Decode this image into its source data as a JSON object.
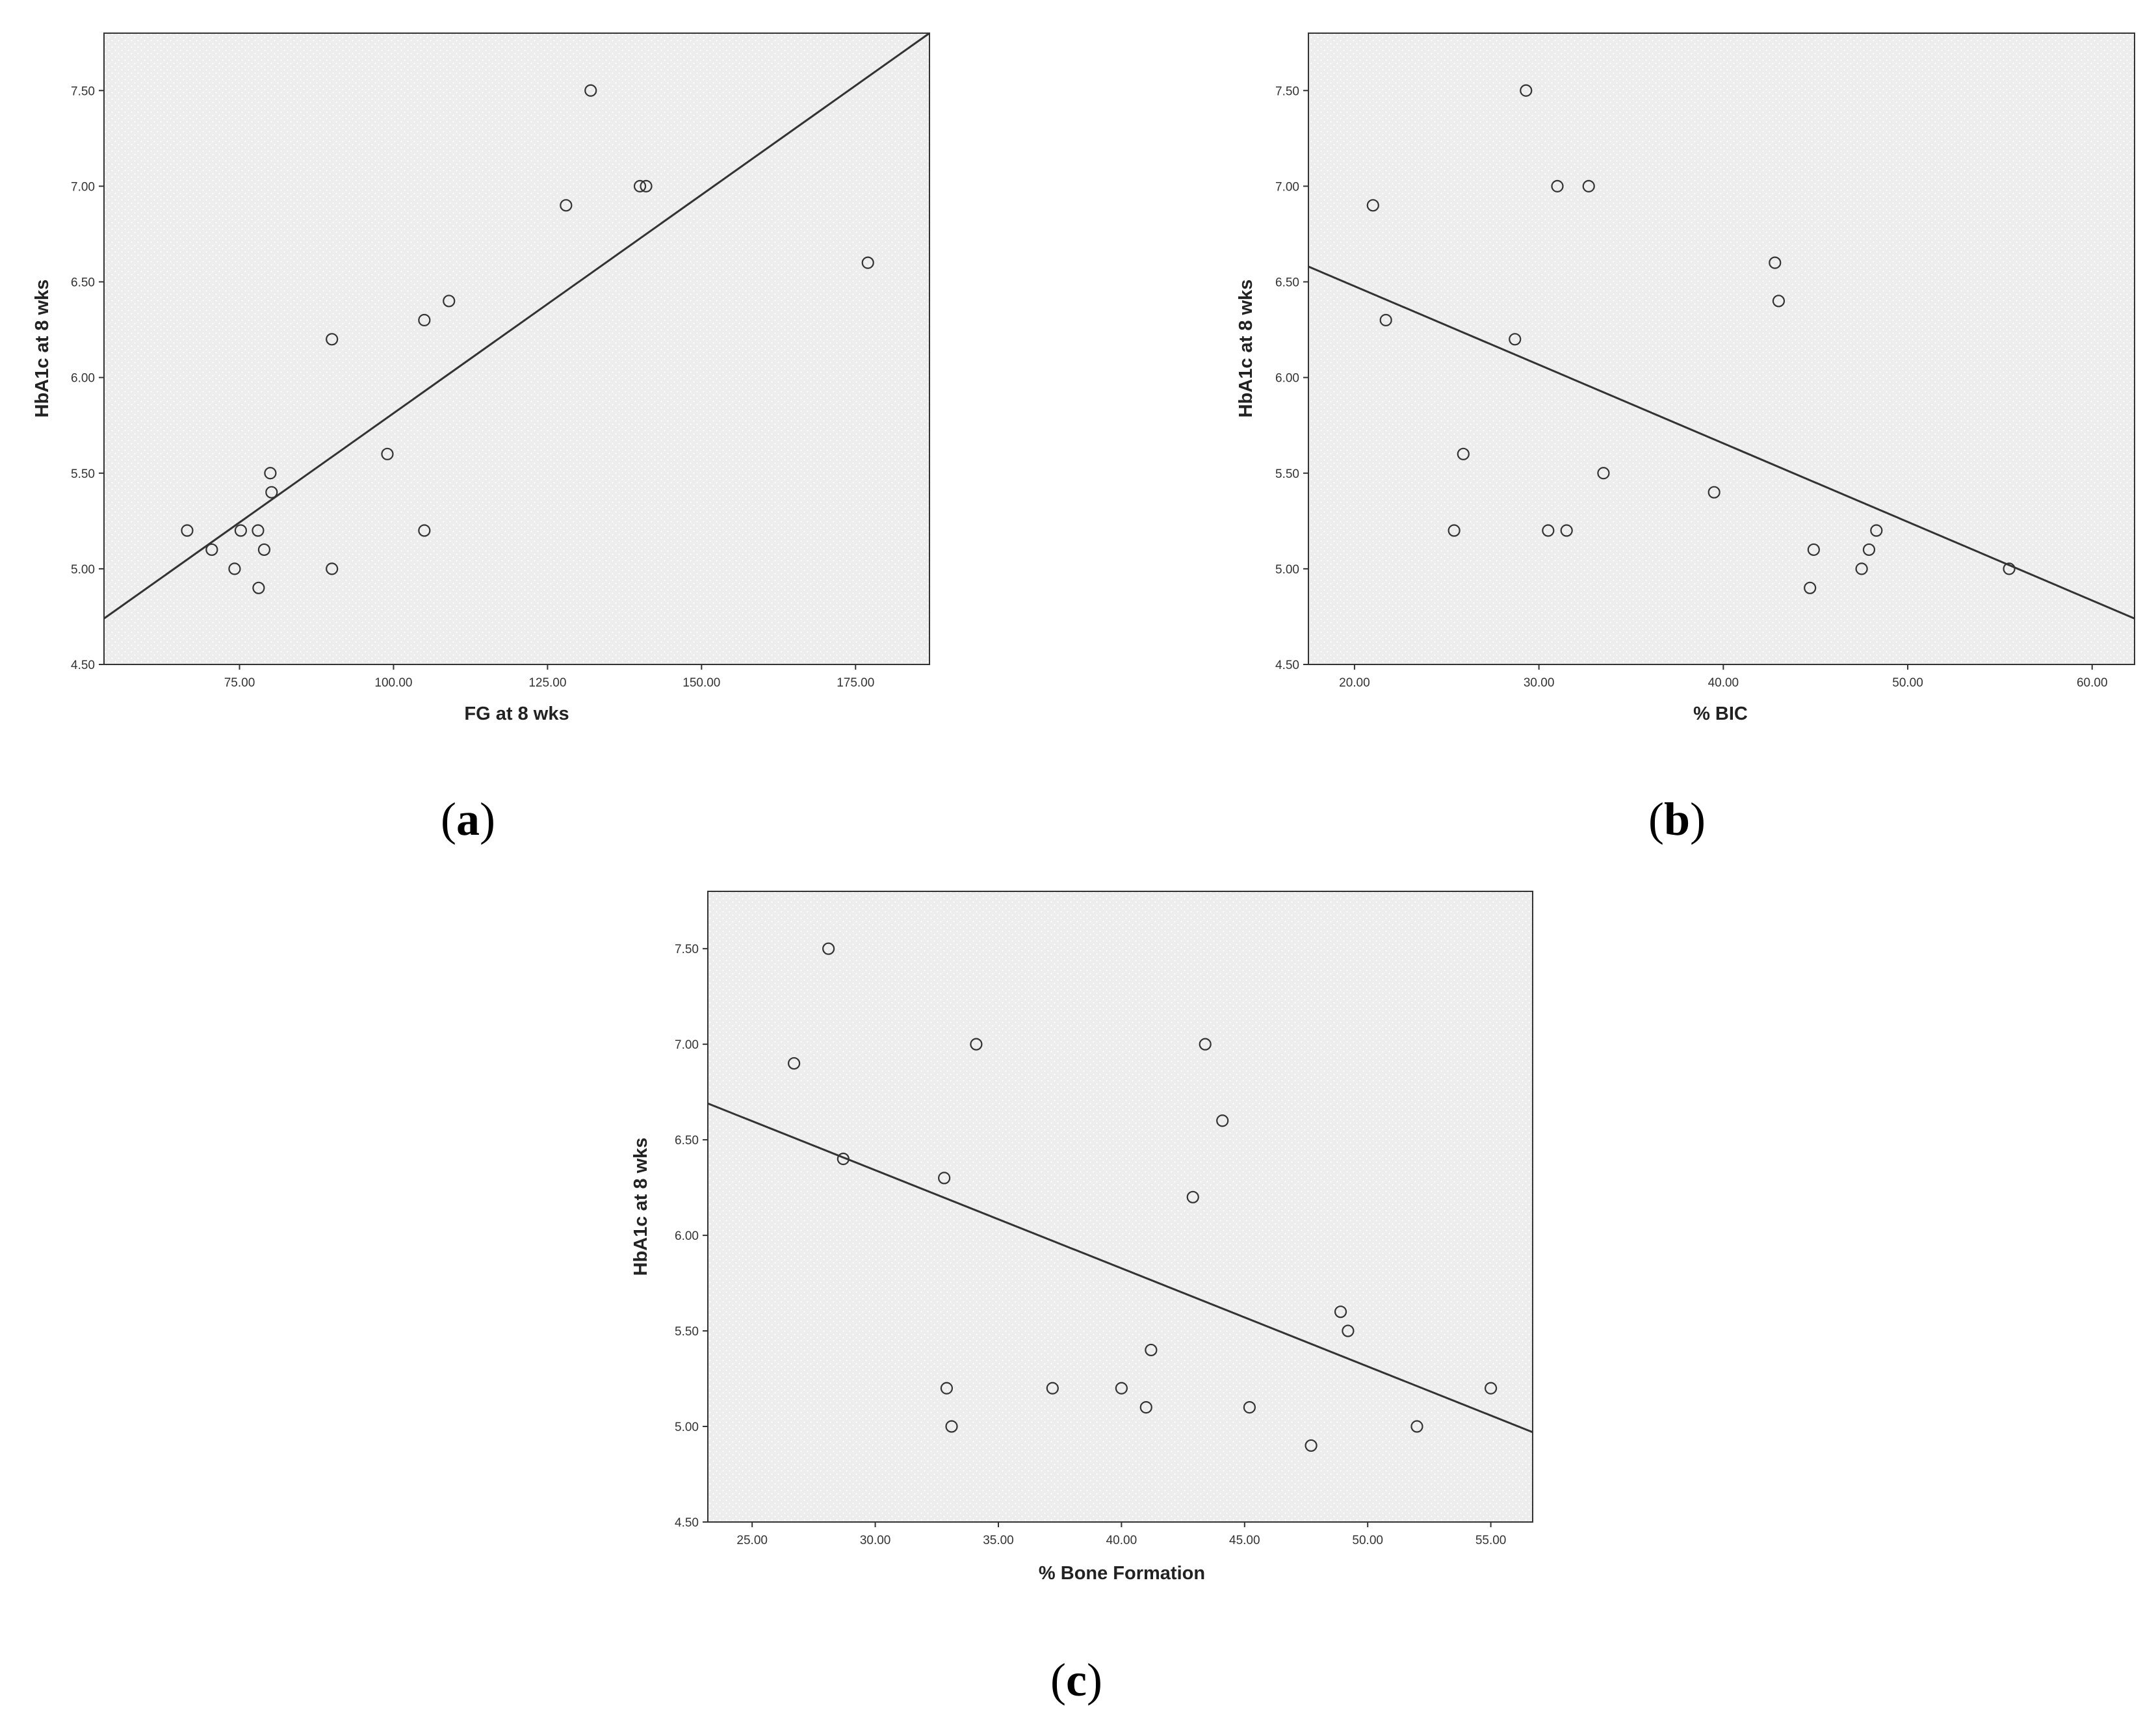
{
  "chart_data": [
    {
      "type": "scatter",
      "panel_label": "(a)",
      "panel_letter": "a",
      "xlabel": "FG at 8 wks",
      "ylabel": "HbA1c at 8 wks",
      "xlim": [
        53,
        187
      ],
      "ylim": [
        4.5,
        7.8
      ],
      "xticks": [
        75,
        100,
        125,
        150,
        175
      ],
      "xtick_labels": [
        "75.00",
        "100.00",
        "125.00",
        "150.00",
        "175.00"
      ],
      "yticks": [
        4.5,
        5.0,
        5.5,
        6.0,
        6.5,
        7.0,
        7.5
      ],
      "ytick_labels": [
        "4.50",
        "5.00",
        "5.50",
        "6.00",
        "6.50",
        "7.00",
        "7.50"
      ],
      "points": [
        {
          "x": 66.5,
          "y": 5.2
        },
        {
          "x": 70.5,
          "y": 5.1
        },
        {
          "x": 74.2,
          "y": 5.0
        },
        {
          "x": 75.2,
          "y": 5.2
        },
        {
          "x": 78.0,
          "y": 5.2
        },
        {
          "x": 78.1,
          "y": 4.9
        },
        {
          "x": 79.0,
          "y": 5.1
        },
        {
          "x": 80.0,
          "y": 5.5
        },
        {
          "x": 80.2,
          "y": 5.4
        },
        {
          "x": 90.0,
          "y": 6.2
        },
        {
          "x": 90.0,
          "y": 5.0
        },
        {
          "x": 99.0,
          "y": 5.6
        },
        {
          "x": 105.0,
          "y": 6.3
        },
        {
          "x": 105.0,
          "y": 5.2
        },
        {
          "x": 109.0,
          "y": 6.4
        },
        {
          "x": 128.0,
          "y": 6.9
        },
        {
          "x": 132.0,
          "y": 7.5
        },
        {
          "x": 140.0,
          "y": 7.0
        },
        {
          "x": 141.0,
          "y": 7.0
        },
        {
          "x": 177.0,
          "y": 6.6
        }
      ],
      "fit_line": {
        "x": [
          53,
          187
        ],
        "y": [
          4.74,
          7.8
        ]
      },
      "grid": false,
      "background": "#ededed"
    },
    {
      "type": "scatter",
      "panel_label": "(b)",
      "panel_letter": "b",
      "xlabel": "% BIC",
      "ylabel": "HbA1c at 8 wks",
      "xlim": [
        17.5,
        62.3
      ],
      "ylim": [
        4.5,
        7.8
      ],
      "xticks": [
        20,
        30,
        40,
        50,
        60
      ],
      "xtick_labels": [
        "20.00",
        "30.00",
        "40.00",
        "50.00",
        "60.00"
      ],
      "yticks": [
        4.5,
        5.0,
        5.5,
        6.0,
        6.5,
        7.0,
        7.5
      ],
      "ytick_labels": [
        "4.50",
        "5.00",
        "5.50",
        "6.00",
        "6.50",
        "7.00",
        "7.50"
      ],
      "points": [
        {
          "x": 21.0,
          "y": 6.9
        },
        {
          "x": 21.7,
          "y": 6.3
        },
        {
          "x": 25.4,
          "y": 5.2
        },
        {
          "x": 25.9,
          "y": 5.6
        },
        {
          "x": 28.7,
          "y": 6.2
        },
        {
          "x": 29.3,
          "y": 7.5
        },
        {
          "x": 30.5,
          "y": 5.2
        },
        {
          "x": 31.0,
          "y": 7.0
        },
        {
          "x": 31.5,
          "y": 5.2
        },
        {
          "x": 32.7,
          "y": 7.0
        },
        {
          "x": 33.5,
          "y": 5.5
        },
        {
          "x": 39.5,
          "y": 5.4
        },
        {
          "x": 42.8,
          "y": 6.6
        },
        {
          "x": 43.0,
          "y": 6.4
        },
        {
          "x": 44.7,
          "y": 4.9
        },
        {
          "x": 44.9,
          "y": 5.1
        },
        {
          "x": 47.5,
          "y": 5.0
        },
        {
          "x": 47.9,
          "y": 5.1
        },
        {
          "x": 48.3,
          "y": 5.2
        },
        {
          "x": 55.5,
          "y": 5.0
        }
      ],
      "fit_line": {
        "x": [
          17.5,
          62.3
        ],
        "y": [
          6.58,
          4.74
        ]
      },
      "grid": false,
      "background": "#ededed"
    },
    {
      "type": "scatter",
      "panel_label": "(c)",
      "panel_letter": "c",
      "xlabel": "% Bone Formation",
      "ylabel": "HbA1c at 8 wks",
      "xlim": [
        23.2,
        56.7
      ],
      "ylim": [
        4.5,
        7.8
      ],
      "xticks": [
        25,
        30,
        35,
        40,
        45,
        50,
        55
      ],
      "xtick_labels": [
        "25.00",
        "30.00",
        "35.00",
        "40.00",
        "45.00",
        "50.00",
        "55.00"
      ],
      "yticks": [
        4.5,
        5.0,
        5.5,
        6.0,
        6.5,
        7.0,
        7.5
      ],
      "ytick_labels": [
        "4.50",
        "5.00",
        "5.50",
        "6.00",
        "6.50",
        "7.00",
        "7.50"
      ],
      "points": [
        {
          "x": 26.7,
          "y": 6.9
        },
        {
          "x": 28.1,
          "y": 7.5
        },
        {
          "x": 28.7,
          "y": 6.4
        },
        {
          "x": 32.8,
          "y": 6.3
        },
        {
          "x": 32.9,
          "y": 5.2
        },
        {
          "x": 33.1,
          "y": 5.0
        },
        {
          "x": 34.1,
          "y": 7.0
        },
        {
          "x": 37.2,
          "y": 5.2
        },
        {
          "x": 40.0,
          "y": 5.2
        },
        {
          "x": 41.0,
          "y": 5.1
        },
        {
          "x": 41.2,
          "y": 5.4
        },
        {
          "x": 42.9,
          "y": 6.2
        },
        {
          "x": 43.4,
          "y": 7.0
        },
        {
          "x": 44.1,
          "y": 6.6
        },
        {
          "x": 45.2,
          "y": 5.1
        },
        {
          "x": 47.7,
          "y": 4.9
        },
        {
          "x": 48.9,
          "y": 5.6
        },
        {
          "x": 49.2,
          "y": 5.5
        },
        {
          "x": 52.0,
          "y": 5.0
        },
        {
          "x": 55.0,
          "y": 5.2
        }
      ],
      "fit_line": {
        "x": [
          23.2,
          56.7
        ],
        "y": [
          6.69,
          4.97
        ]
      },
      "grid": false,
      "background": "#ededed"
    }
  ]
}
